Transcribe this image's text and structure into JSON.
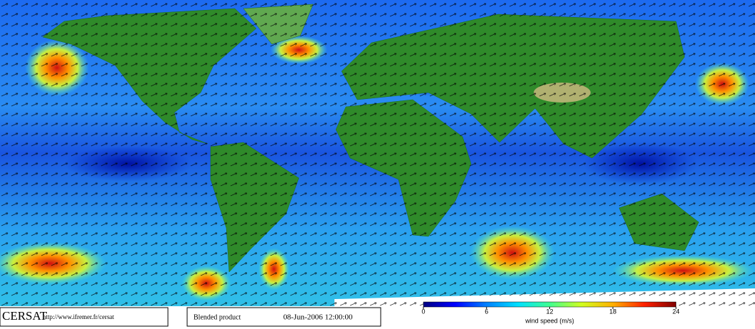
{
  "header": {
    "logo": "CERSAT",
    "url": "http://www.ifremer.fr/cersat",
    "product": "Blended product",
    "date": "08-Jun-2006 12:00:00"
  },
  "colorbar": {
    "label": "wind speed (m/s)",
    "range": [
      0,
      24
    ],
    "ticks": [
      0,
      6,
      12,
      18,
      24
    ],
    "colors": [
      "#000080",
      "#0000ff",
      "#0080ff",
      "#00e0ff",
      "#40ff90",
      "#d0ff20",
      "#ffb000",
      "#ff2000",
      "#800000"
    ]
  }
}
